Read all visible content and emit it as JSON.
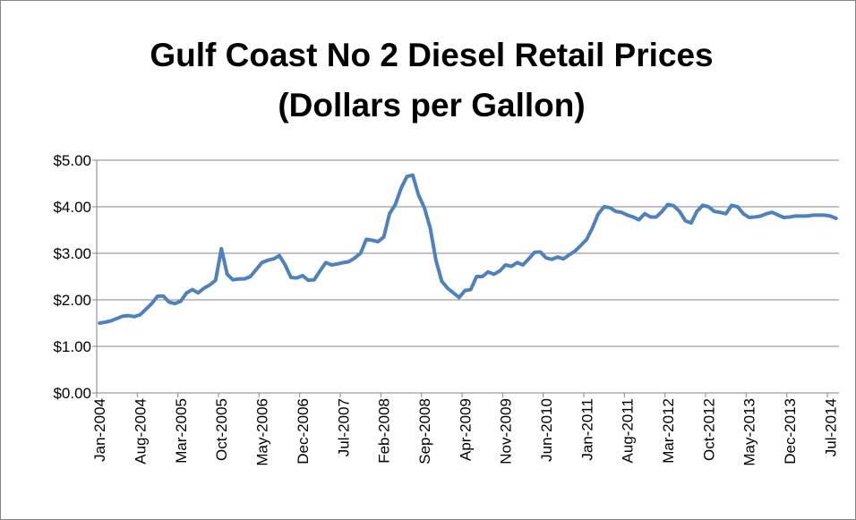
{
  "chart_data": {
    "type": "line",
    "title": [
      "Gulf Coast No 2 Diesel Retail Prices",
      "(Dollars per Gallon)"
    ],
    "categories": [
      "Jan-2004",
      null,
      null,
      null,
      null,
      null,
      null,
      "Aug-2004",
      null,
      null,
      null,
      null,
      null,
      null,
      "Mar-2005",
      null,
      null,
      null,
      null,
      null,
      null,
      "Oct-2005",
      null,
      null,
      null,
      null,
      null,
      null,
      "May-2006",
      null,
      null,
      null,
      null,
      null,
      null,
      "Dec-2006",
      null,
      null,
      null,
      null,
      null,
      null,
      "Jul-2007",
      null,
      null,
      null,
      null,
      null,
      null,
      "Feb-2008",
      null,
      null,
      null,
      null,
      null,
      null,
      "Sep-2008",
      null,
      null,
      null,
      null,
      null,
      null,
      "Apr-2009",
      null,
      null,
      null,
      null,
      null,
      null,
      "Nov-2009",
      null,
      null,
      null,
      null,
      null,
      null,
      "Jun-2010",
      null,
      null,
      null,
      null,
      null,
      null,
      "Jan-2011",
      null,
      null,
      null,
      null,
      null,
      null,
      "Aug-2011",
      null,
      null,
      null,
      null,
      null,
      null,
      "Mar-2012",
      null,
      null,
      null,
      null,
      null,
      null,
      "Oct-2012",
      null,
      null,
      null,
      null,
      null,
      null,
      "May-2013",
      null,
      null,
      null,
      null,
      null,
      null,
      "Dec-2013",
      null,
      null,
      null,
      null,
      null,
      null,
      "Jul-2014",
      null
    ],
    "series": [
      {
        "name": "Gulf Coast No 2 Diesel Retail Prices",
        "color": "#4f81bd",
        "values": [
          1.5,
          1.52,
          1.55,
          1.6,
          1.65,
          1.66,
          1.64,
          1.68,
          1.8,
          1.92,
          2.08,
          2.08,
          1.95,
          1.92,
          1.97,
          2.15,
          2.22,
          2.15,
          2.25,
          2.32,
          2.42,
          3.1,
          2.55,
          2.43,
          2.45,
          2.45,
          2.5,
          2.65,
          2.8,
          2.85,
          2.88,
          2.95,
          2.75,
          2.48,
          2.47,
          2.52,
          2.42,
          2.43,
          2.62,
          2.8,
          2.75,
          2.77,
          2.8,
          2.82,
          2.9,
          3.0,
          3.3,
          3.28,
          3.25,
          3.35,
          3.85,
          4.05,
          4.4,
          4.65,
          4.68,
          4.25,
          3.98,
          3.55,
          2.85,
          2.4,
          2.25,
          2.15,
          2.05,
          2.2,
          2.22,
          2.5,
          2.5,
          2.6,
          2.55,
          2.62,
          2.75,
          2.72,
          2.8,
          2.75,
          2.88,
          3.02,
          3.03,
          2.9,
          2.87,
          2.92,
          2.88,
          2.97,
          3.05,
          3.17,
          3.3,
          3.55,
          3.85,
          4.0,
          3.98,
          3.9,
          3.88,
          3.82,
          3.78,
          3.72,
          3.85,
          3.78,
          3.78,
          3.9,
          4.05,
          4.02,
          3.9,
          3.7,
          3.65,
          3.9,
          4.03,
          4.0,
          3.9,
          3.88,
          3.85,
          4.03,
          4.0,
          3.85,
          3.77,
          3.78,
          3.8,
          3.85,
          3.88,
          3.82,
          3.77,
          3.78,
          3.8,
          3.8,
          3.8,
          3.82,
          3.82,
          3.82,
          3.8,
          3.75
        ]
      }
    ],
    "ylim": [
      0,
      5
    ],
    "yticks": [
      {
        "value": 0,
        "label": "$0.00"
      },
      {
        "value": 1,
        "label": "$1.00"
      },
      {
        "value": 2,
        "label": "$2.00"
      },
      {
        "value": 3,
        "label": "$3.00"
      },
      {
        "value": 4,
        "label": "$4.00"
      },
      {
        "value": 5,
        "label": "$5.00"
      }
    ],
    "grid": true
  }
}
